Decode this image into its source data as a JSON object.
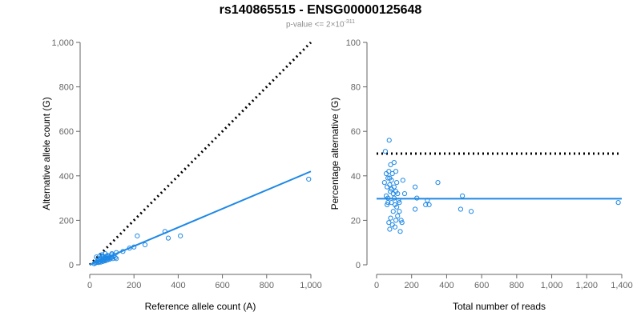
{
  "title": "rs140865515 - ENSG00000125648",
  "subtitle": {
    "prefix": "p-value <= 2×10",
    "exponent": "-311"
  },
  "colors": {
    "points": "#1e88e5",
    "fit": "#1e88e5",
    "reference": "#000000",
    "axis": "#666666"
  },
  "chart_data": [
    {
      "type": "scatter",
      "xlabel": "Reference allele count (A)",
      "ylabel": "Alternative allele count (G)",
      "xlim": [
        0,
        1000
      ],
      "ylim": [
        0,
        1000
      ],
      "xticks": [
        0,
        200,
        400,
        600,
        800,
        1000
      ],
      "xtick_labels": [
        "0",
        "200",
        "400",
        "600",
        "800",
        "1,000"
      ],
      "yticks": [
        0,
        200,
        400,
        600,
        800,
        1000
      ],
      "ytick_labels": [
        "0",
        "200",
        "400",
        "600",
        "800",
        "1,000"
      ],
      "grid": false,
      "reference_line": {
        "style": "dotted",
        "x": [
          0,
          1000
        ],
        "y": [
          0,
          1000
        ]
      },
      "fit_line": {
        "style": "solid",
        "x": [
          0,
          1000
        ],
        "y": [
          0,
          420
        ]
      },
      "points": {
        "x": [
          20,
          25,
          30,
          35,
          35,
          40,
          40,
          45,
          45,
          50,
          50,
          55,
          55,
          60,
          60,
          65,
          65,
          70,
          70,
          75,
          75,
          80,
          80,
          85,
          85,
          90,
          90,
          95,
          100,
          100,
          105,
          110,
          115,
          120,
          30,
          45,
          55,
          60,
          70,
          75,
          80,
          90,
          100,
          120,
          150,
          180,
          200,
          215,
          250,
          340,
          355,
          410,
          990
        ],
        "y": [
          5,
          8,
          10,
          12,
          18,
          10,
          22,
          15,
          25,
          12,
          30,
          18,
          35,
          15,
          22,
          20,
          28,
          18,
          32,
          25,
          38,
          22,
          30,
          28,
          40,
          25,
          35,
          30,
          35,
          45,
          28,
          40,
          32,
          28,
          35,
          40,
          45,
          38,
          50,
          30,
          42,
          35,
          50,
          55,
          60,
          75,
          80,
          130,
          90,
          150,
          120,
          130,
          385
        ]
      }
    },
    {
      "type": "scatter",
      "xlabel": "Total number of reads",
      "ylabel": "Percentage alternative (G)",
      "xlim": [
        0,
        1400
      ],
      "ylim": [
        0,
        100
      ],
      "xticks": [
        0,
        200,
        400,
        600,
        800,
        1000,
        1200,
        1400
      ],
      "xtick_labels": [
        "0",
        "200",
        "400",
        "600",
        "800",
        "1,000",
        "1,200",
        "1,400"
      ],
      "yticks": [
        0,
        20,
        40,
        60,
        80,
        100
      ],
      "ytick_labels": [
        "0",
        "20",
        "40",
        "60",
        "80",
        "100"
      ],
      "grid": false,
      "reference_line": {
        "style": "dotted",
        "x": [
          0,
          1400
        ],
        "y": [
          50,
          50
        ]
      },
      "fit_line": {
        "style": "solid",
        "x": [
          0,
          1400
        ],
        "y": [
          29.7,
          29.7
        ]
      },
      "points": {
        "x": [
          45,
          50,
          55,
          60,
          60,
          65,
          65,
          70,
          70,
          72,
          75,
          75,
          78,
          80,
          80,
          85,
          85,
          90,
          90,
          95,
          95,
          100,
          100,
          105,
          105,
          110,
          110,
          115,
          115,
          120,
          120,
          125,
          130,
          135,
          140,
          150,
          160,
          220,
          220,
          230,
          280,
          290,
          300,
          350,
          480,
          490,
          540,
          1380,
          55,
          65,
          75,
          85,
          100,
          110,
          130,
          145
        ],
        "y": [
          37,
          51,
          41,
          35,
          27,
          39,
          30,
          42,
          19,
          56,
          36,
          16,
          33,
          45,
          21,
          38,
          28,
          41,
          18,
          32,
          24,
          46,
          35,
          27,
          17,
          33,
          20,
          37,
          26,
          32,
          22,
          29,
          24,
          15,
          20,
          38,
          32,
          35,
          25,
          30,
          27,
          29,
          27,
          37,
          25,
          31,
          24,
          28,
          31,
          28,
          39,
          34,
          30,
          42,
          28,
          19
        ]
      }
    }
  ]
}
